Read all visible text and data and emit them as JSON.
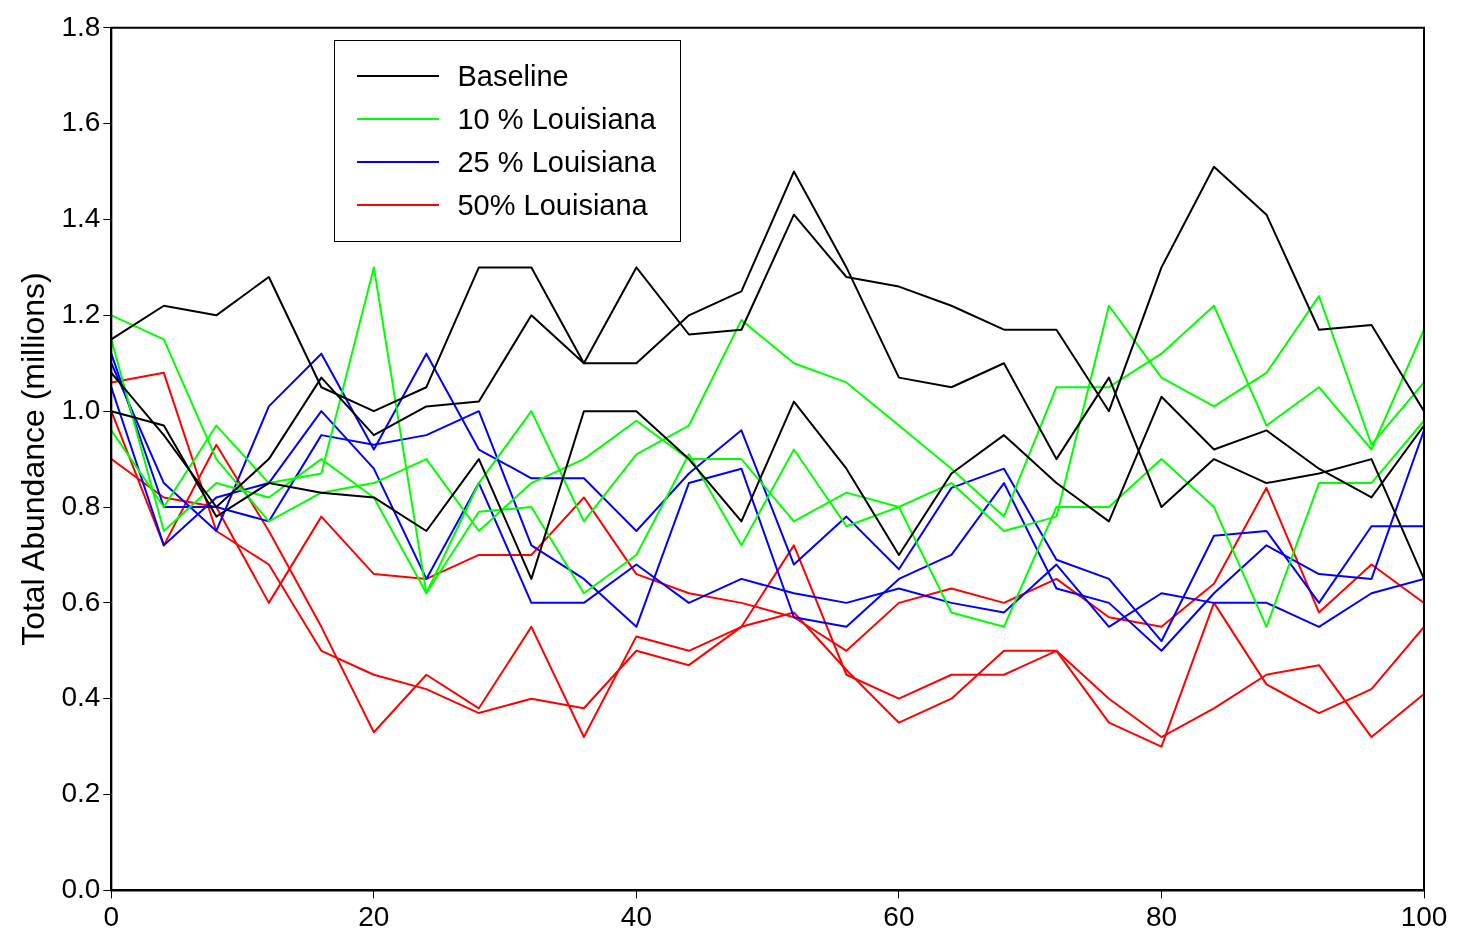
{
  "chart_data": {
    "type": "line",
    "ylabel": "Total Abundance (millions)",
    "legend": "top left",
    "grid": false,
    "marker": "none",
    "line_style": "solid",
    "x": [
      0,
      4,
      8,
      12,
      16,
      20,
      24,
      28,
      32,
      36,
      40,
      44,
      48,
      52,
      56,
      60,
      64,
      68,
      72,
      76,
      80,
      84,
      88,
      92,
      96,
      100
    ],
    "xlim": [
      0,
      100
    ],
    "xticks": [
      0,
      20,
      40,
      60,
      80,
      100
    ],
    "ylim": [
      0,
      1.8
    ],
    "yticks": [
      {
        "value": 0,
        "label": "0.0"
      },
      {
        "value": 0.2,
        "label": "0.2"
      },
      {
        "value": 0.4,
        "label": "0.4"
      },
      {
        "value": 0.6,
        "label": "0.6"
      },
      {
        "value": 0.8,
        "label": "0.8"
      },
      {
        "value": 1,
        "label": "1.0"
      },
      {
        "value": 1.2,
        "label": "1.2"
      },
      {
        "value": 1.4,
        "label": "1.4"
      },
      {
        "value": 1.6,
        "label": "1.6"
      },
      {
        "value": 1.8,
        "label": "1.8"
      }
    ],
    "series": [
      {
        "name": "Baseline",
        "color": "#000000",
        "values": [
          1.15,
          1.22,
          1.2,
          1.28,
          1.05,
          1.0,
          1.05,
          1.3,
          1.3,
          1.1,
          1.3,
          1.16,
          1.17,
          1.41,
          1.28,
          1.26,
          1.22,
          1.17,
          1.17,
          1.0,
          1.3,
          1.51,
          1.41,
          1.17,
          1.18,
          1.0
        ]
      },
      {
        "color": "#000000",
        "values": [
          1.08,
          0.95,
          0.8,
          0.9,
          1.07,
          0.95,
          1.01,
          1.02,
          1.2,
          1.1,
          1.1,
          1.2,
          1.25,
          1.5,
          1.3,
          1.07,
          1.05,
          1.1,
          0.9,
          1.07,
          0.8,
          0.9,
          0.85,
          0.87,
          0.9,
          0.65
        ]
      },
      {
        "color": "#000000",
        "values": [
          1.0,
          0.97,
          0.78,
          0.85,
          0.83,
          0.82,
          0.75,
          0.9,
          0.65,
          1.0,
          1.0,
          0.9,
          0.77,
          1.02,
          0.88,
          0.7,
          0.87,
          0.95,
          0.85,
          0.77,
          1.03,
          0.92,
          0.96,
          0.88,
          0.82,
          0.97
        ]
      },
      {
        "name": "10 % Louisiana",
        "color": "#00ff00",
        "values": [
          0.96,
          0.8,
          0.97,
          0.85,
          0.87,
          1.3,
          0.62,
          0.85,
          1.0,
          0.77,
          0.91,
          0.97,
          1.19,
          1.1,
          1.06,
          0.97,
          0.88,
          0.78,
          1.05,
          1.05,
          1.12,
          1.22,
          0.97,
          1.05,
          0.92,
          1.17
        ]
      },
      {
        "color": "#00ff00",
        "values": [
          1.2,
          1.15,
          0.9,
          0.77,
          0.83,
          0.85,
          0.9,
          0.75,
          0.85,
          0.9,
          0.98,
          0.9,
          0.9,
          0.77,
          0.83,
          0.8,
          0.85,
          0.75,
          0.78,
          1.22,
          1.07,
          1.01,
          1.08,
          1.24,
          0.93,
          1.06
        ]
      },
      {
        "color": "#00ff00",
        "values": [
          1.15,
          0.75,
          0.85,
          0.82,
          0.9,
          0.82,
          0.62,
          0.79,
          0.8,
          0.62,
          0.7,
          0.91,
          0.72,
          0.92,
          0.76,
          0.8,
          0.58,
          0.55,
          0.8,
          0.8,
          0.9,
          0.8,
          0.55,
          0.85,
          0.85,
          0.98
        ]
      },
      {
        "name": "25 % Louisiana",
        "color": "#0000ff",
        "values": [
          1.1,
          0.85,
          0.75,
          1.01,
          1.12,
          0.92,
          1.12,
          0.92,
          0.86,
          0.86,
          0.75,
          0.87,
          0.96,
          0.68,
          0.78,
          0.67,
          0.84,
          0.88,
          0.69,
          0.65,
          0.52,
          0.74,
          0.75,
          0.6,
          0.76,
          0.76
        ]
      },
      {
        "color": "#0000ff",
        "values": [
          1.12,
          0.8,
          0.8,
          0.77,
          0.95,
          0.93,
          0.95,
          1.0,
          0.72,
          0.65,
          0.55,
          0.85,
          0.88,
          0.57,
          0.55,
          0.65,
          0.7,
          0.85,
          0.63,
          0.6,
          0.5,
          0.62,
          0.72,
          0.66,
          0.65,
          0.96
        ]
      },
      {
        "color": "#0000ff",
        "values": [
          1.05,
          0.72,
          0.82,
          0.85,
          1.0,
          0.88,
          0.65,
          0.85,
          0.6,
          0.6,
          0.68,
          0.6,
          0.65,
          0.62,
          0.6,
          0.63,
          0.6,
          0.58,
          0.68,
          0.55,
          0.62,
          0.6,
          0.6,
          0.55,
          0.62,
          0.65
        ]
      },
      {
        "name": "50% Louisiana",
        "color": "#ff0000",
        "values": [
          1.06,
          1.08,
          0.75,
          0.68,
          0.5,
          0.45,
          0.42,
          0.37,
          0.4,
          0.38,
          0.5,
          0.47,
          0.55,
          0.72,
          0.45,
          0.4,
          0.45,
          0.45,
          0.5,
          0.4,
          0.32,
          0.38,
          0.45,
          0.47,
          0.32,
          0.41
        ]
      },
      {
        "color": "#ff0000",
        "values": [
          1.0,
          0.72,
          0.93,
          0.75,
          0.55,
          0.33,
          0.45,
          0.38,
          0.55,
          0.32,
          0.53,
          0.5,
          0.55,
          0.58,
          0.46,
          0.35,
          0.4,
          0.5,
          0.5,
          0.35,
          0.3,
          0.6,
          0.43,
          0.37,
          0.42,
          0.55
        ]
      },
      {
        "color": "#ff0000",
        "values": [
          0.9,
          0.82,
          0.8,
          0.6,
          0.78,
          0.66,
          0.65,
          0.7,
          0.7,
          0.82,
          0.66,
          0.62,
          0.6,
          0.57,
          0.5,
          0.6,
          0.63,
          0.6,
          0.65,
          0.57,
          0.55,
          0.64,
          0.84,
          0.58,
          0.68,
          0.6
        ]
      }
    ]
  }
}
